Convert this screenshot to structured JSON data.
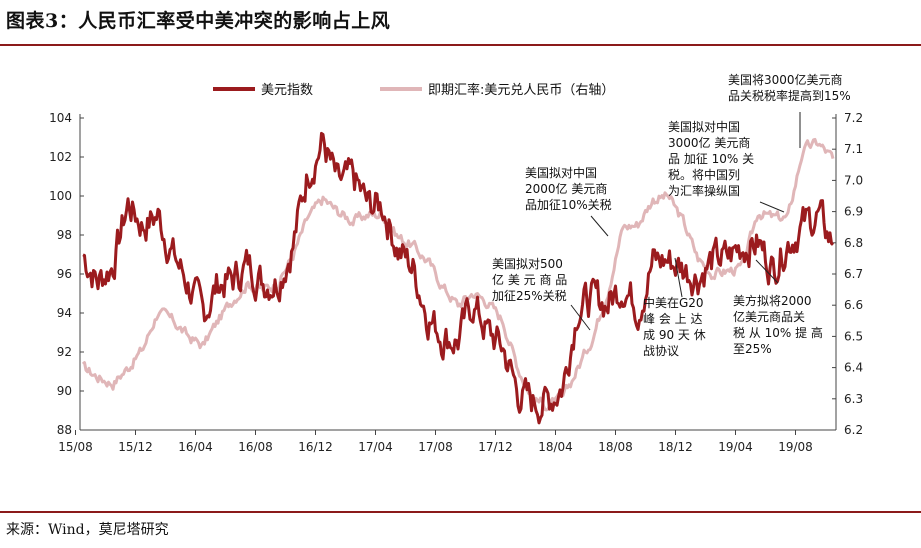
{
  "title": "图表3：人民币汇率受中美冲突的影响占上风",
  "source": "来源：Wind，莫尼塔研究",
  "colors": {
    "usd": "#9b1b1e",
    "cny": "#e0b6b8",
    "rule": "#8b1a1a"
  },
  "chart_data": {
    "type": "line",
    "x_ticks": [
      "15/08",
      "15/12",
      "16/04",
      "16/08",
      "16/12",
      "17/04",
      "17/08",
      "17/12",
      "18/04",
      "18/08",
      "18/12",
      "19/04",
      "19/08"
    ],
    "ylim_left": [
      88,
      104
    ],
    "yticks_left": [
      "88",
      "90",
      "92",
      "94",
      "96",
      "98",
      "100",
      "102",
      "104"
    ],
    "ylim_right": [
      6.2,
      7.2
    ],
    "yticks_right": [
      "6.2",
      "6.3",
      "6.4",
      "6.5",
      "6.6",
      "6.7",
      "6.8",
      "6.9",
      "7.0",
      "7.1",
      "7.2"
    ],
    "legend_position": "top",
    "series": [
      {
        "name": "美元指数",
        "axis": "left",
        "x": [
          "2015-08",
          "2015-09",
          "2015-10",
          "2015-11",
          "2015-12",
          "2016-01",
          "2016-02",
          "2016-03",
          "2016-04",
          "2016-05",
          "2016-06",
          "2016-07",
          "2016-08",
          "2016-09",
          "2016-10",
          "2016-11",
          "2016-12",
          "2017-01",
          "2017-02",
          "2017-03",
          "2017-04",
          "2017-05",
          "2017-06",
          "2017-07",
          "2017-08",
          "2017-09",
          "2017-10",
          "2017-11",
          "2017-12",
          "2018-01",
          "2018-02",
          "2018-03",
          "2018-04",
          "2018-05",
          "2018-06",
          "2018-07",
          "2018-08",
          "2018-09",
          "2018-10",
          "2018-11",
          "2018-12",
          "2019-01",
          "2019-02",
          "2019-03",
          "2019-04",
          "2019-05",
          "2019-06",
          "2019-07",
          "2019-08",
          "2019-09",
          "2019-10"
        ],
        "values": [
          97.0,
          95.6,
          96.5,
          99.6,
          98.5,
          99.0,
          97.0,
          95.5,
          93.9,
          95.5,
          95.7,
          96.5,
          95.6,
          95.7,
          97.5,
          101.3,
          102.8,
          100.5,
          100.9,
          99.5,
          99.5,
          97.3,
          96.3,
          93.9,
          92.8,
          92.6,
          94.5,
          93.0,
          92.2,
          89.9,
          89.4,
          89.5,
          90.3,
          94.4,
          94.7,
          94.5,
          95.5,
          94.3,
          96.6,
          96.7,
          96.3,
          95.9,
          96.7,
          96.8,
          97.5,
          97.6,
          96.3,
          97.7,
          98.5,
          99.0,
          97.5
        ]
      },
      {
        "name": "即期汇率:美元兑人民币（右轴）",
        "axis": "right",
        "x": [
          "2015-08",
          "2015-09",
          "2015-10",
          "2015-11",
          "2015-12",
          "2016-01",
          "2016-02",
          "2016-03",
          "2016-04",
          "2016-05",
          "2016-06",
          "2016-07",
          "2016-08",
          "2016-09",
          "2016-10",
          "2016-11",
          "2016-12",
          "2017-01",
          "2017-02",
          "2017-03",
          "2017-04",
          "2017-05",
          "2017-06",
          "2017-07",
          "2017-08",
          "2017-09",
          "2017-10",
          "2017-11",
          "2017-12",
          "2018-01",
          "2018-02",
          "2018-03",
          "2018-04",
          "2018-05",
          "2018-06",
          "2018-07",
          "2018-08",
          "2018-09",
          "2018-10",
          "2018-11",
          "2018-12",
          "2019-01",
          "2019-02",
          "2019-03",
          "2019-04",
          "2019-05",
          "2019-06",
          "2019-07",
          "2019-08",
          "2019-09",
          "2019-10"
        ],
        "values": [
          6.4,
          6.37,
          6.35,
          6.4,
          6.46,
          6.58,
          6.55,
          6.5,
          6.47,
          6.55,
          6.62,
          6.67,
          6.65,
          6.67,
          6.76,
          6.88,
          6.94,
          6.9,
          6.87,
          6.89,
          6.89,
          6.82,
          6.79,
          6.74,
          6.66,
          6.6,
          6.64,
          6.61,
          6.55,
          6.4,
          6.3,
          6.28,
          6.3,
          6.4,
          6.5,
          6.65,
          6.85,
          6.86,
          6.94,
          6.95,
          6.87,
          6.75,
          6.7,
          6.71,
          6.72,
          6.9,
          6.88,
          6.88,
          7.1,
          7.12,
          7.07
        ]
      }
    ],
    "annotations": [
      {
        "lines": [
          "美国将3000亿美元商",
          "品关税税率提高到15%"
        ]
      },
      {
        "lines": [
          "美国拟对中国",
          "3000亿 美元商",
          "品 加征 10% 关",
          "税。将中国列",
          "为汇率操纵国"
        ]
      },
      {
        "lines": [
          "美国拟对中国",
          "2000亿 美元商",
          "品加征10%关税"
        ]
      },
      {
        "lines": [
          "美国拟对500",
          "亿 美 元 商 品",
          "加征25%关税"
        ]
      },
      {
        "lines": [
          "中美在G20",
          "峰 会 上 达",
          "成 90 天 休",
          "战协议"
        ]
      },
      {
        "lines": [
          "美方拟将2000",
          "亿美元商品关",
          "税 从 10% 提 高",
          "至25%"
        ]
      }
    ]
  }
}
